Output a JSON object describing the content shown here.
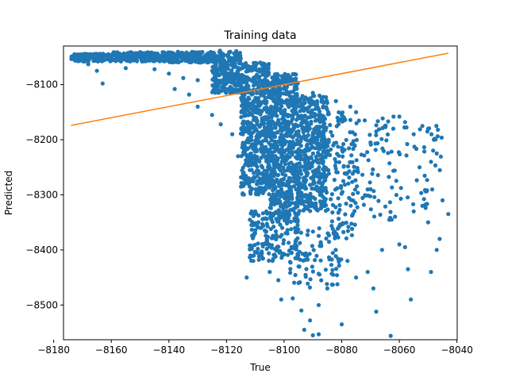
{
  "chart_data": {
    "type": "scatter",
    "title": "Training data",
    "xlabel": "True",
    "ylabel": "Predicted",
    "xlim": [
      -8176.6,
      -8039.9
    ],
    "ylim": [
      -8563,
      -8030
    ],
    "xticks": [
      -8180,
      -8160,
      -8140,
      -8120,
      -8100,
      -8080,
      -8060,
      -8040
    ],
    "yticks": [
      -8100,
      -8200,
      -8300,
      -8400,
      -8500
    ],
    "grid": false,
    "colors": {
      "scatter": "#1f77b4",
      "line": "#ff7f0e"
    },
    "line": {
      "x": [
        -8174,
        -8043
      ],
      "y": [
        -8174,
        -8043
      ]
    },
    "scatter_bands": [
      {
        "x": [
          -8174,
          -8160
        ],
        "y": [
          -8058,
          -8044
        ],
        "n": 140
      },
      {
        "x": [
          -8160,
          -8140
        ],
        "y": [
          -8058,
          -8041
        ],
        "n": 180
      },
      {
        "x": [
          -8140,
          -8125
        ],
        "y": [
          -8060,
          -8040
        ],
        "n": 180
      },
      {
        "x": [
          -8125,
          -8115
        ],
        "y": [
          -8115,
          -8038
        ],
        "n": 280
      },
      {
        "x": [
          -8115,
          -8105
        ],
        "y": [
          -8300,
          -8060
        ],
        "n": 550
      },
      {
        "x": [
          -8105,
          -8095
        ],
        "y": [
          -8350,
          -8080
        ],
        "n": 650
      },
      {
        "x": [
          -8095,
          -8085
        ],
        "y": [
          -8330,
          -8120
        ],
        "n": 420
      },
      {
        "x": [
          -8085,
          -8075
        ],
        "y": [
          -8380,
          -8150
        ],
        "n": 130
      },
      {
        "x": [
          -8075,
          -8060
        ],
        "y": [
          -8350,
          -8160
        ],
        "n": 70
      },
      {
        "x": [
          -8060,
          -8045
        ],
        "y": [
          -8330,
          -8165
        ],
        "n": 40
      },
      {
        "x": [
          -8112,
          -8095
        ],
        "y": [
          -8420,
          -8330
        ],
        "n": 160
      },
      {
        "x": [
          -8098,
          -8080
        ],
        "y": [
          -8470,
          -8360
        ],
        "n": 80
      }
    ],
    "scatter_points": [
      {
        "x": -8172,
        "y": -8050
      },
      {
        "x": -8168,
        "y": -8063
      },
      {
        "x": -8165,
        "y": -8075
      },
      {
        "x": -8163,
        "y": -8098
      },
      {
        "x": -8155,
        "y": -8070
      },
      {
        "x": -8145,
        "y": -8072
      },
      {
        "x": -8140,
        "y": -8080
      },
      {
        "x": -8135,
        "y": -8088
      },
      {
        "x": -8130,
        "y": -8092
      },
      {
        "x": -8138,
        "y": -8108
      },
      {
        "x": -8133,
        "y": -8118
      },
      {
        "x": -8130,
        "y": -8140
      },
      {
        "x": -8125,
        "y": -8155
      },
      {
        "x": -8122,
        "y": -8172
      },
      {
        "x": -8118,
        "y": -8190
      },
      {
        "x": -8116,
        "y": -8230
      },
      {
        "x": -8114,
        "y": -8260
      },
      {
        "x": -8112,
        "y": -8285
      },
      {
        "x": -8110,
        "y": -8330
      },
      {
        "x": -8108,
        "y": -8360
      },
      {
        "x": -8106,
        "y": -8398
      },
      {
        "x": -8104,
        "y": -8420
      },
      {
        "x": -8113,
        "y": -8450
      },
      {
        "x": -8105,
        "y": -8440
      },
      {
        "x": -8102,
        "y": -8455
      },
      {
        "x": -8101,
        "y": -8490
      },
      {
        "x": -8097,
        "y": -8488
      },
      {
        "x": -8095,
        "y": -8460
      },
      {
        "x": -8094,
        "y": -8510
      },
      {
        "x": -8093,
        "y": -8545
      },
      {
        "x": -8091,
        "y": -8528
      },
      {
        "x": -8090,
        "y": -8555
      },
      {
        "x": -8088,
        "y": -8500
      },
      {
        "x": -8088,
        "y": -8553
      },
      {
        "x": -8085,
        "y": -8470
      },
      {
        "x": -8083,
        "y": -8445
      },
      {
        "x": -8080,
        "y": -8535
      },
      {
        "x": -8078,
        "y": -8420
      },
      {
        "x": -8075,
        "y": -8450
      },
      {
        "x": -8071,
        "y": -8440
      },
      {
        "x": -8069,
        "y": -8470
      },
      {
        "x": -8068,
        "y": -8512
      },
      {
        "x": -8066,
        "y": -8400
      },
      {
        "x": -8063,
        "y": -8556
      },
      {
        "x": -8060,
        "y": -8390
      },
      {
        "x": -8058,
        "y": -8395
      },
      {
        "x": -8057,
        "y": -8435
      },
      {
        "x": -8056,
        "y": -8490
      },
      {
        "x": -8055,
        "y": -8330
      },
      {
        "x": -8052,
        "y": -8320
      },
      {
        "x": -8050,
        "y": -8350
      },
      {
        "x": -8049,
        "y": -8440
      },
      {
        "x": -8047,
        "y": -8400
      },
      {
        "x": -8046,
        "y": -8380
      },
      {
        "x": -8045,
        "y": -8310
      },
      {
        "x": -8043,
        "y": -8335
      },
      {
        "x": -8062,
        "y": -8158
      },
      {
        "x": -8060,
        "y": -8158
      },
      {
        "x": -8058,
        "y": -8168
      },
      {
        "x": -8055,
        "y": -8190
      },
      {
        "x": -8052,
        "y": -8175
      },
      {
        "x": -8050,
        "y": -8180
      },
      {
        "x": -8048,
        "y": -8200
      },
      {
        "x": -8047,
        "y": -8225
      },
      {
        "x": -8049,
        "y": -8240
      },
      {
        "x": -8053,
        "y": -8250
      },
      {
        "x": -8068,
        "y": -8185
      },
      {
        "x": -8065,
        "y": -8175
      },
      {
        "x": -8070,
        "y": -8205
      },
      {
        "x": -8072,
        "y": -8165
      },
      {
        "x": -8075,
        "y": -8150
      },
      {
        "x": -8077,
        "y": -8140
      },
      {
        "x": -8080,
        "y": -8155
      },
      {
        "x": -8082,
        "y": -8130
      },
      {
        "x": -8087,
        "y": -8125
      },
      {
        "x": -8090,
        "y": -8115
      }
    ]
  }
}
